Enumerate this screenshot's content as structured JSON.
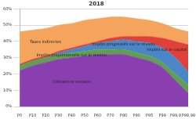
{
  "chart_data": {
    "type": "area",
    "title": "2018",
    "categories": [
      "P0",
      "P10",
      "P20",
      "P30",
      "P40",
      "P50",
      "P60",
      "P70",
      "P80",
      "P90",
      "P95",
      "P99",
      "P99,9",
      "P99,99"
    ],
    "stacked": true,
    "grid": true,
    "ylim": [
      0,
      60
    ],
    "yticks": [
      {
        "value": 0,
        "label": "0%"
      },
      {
        "value": 10,
        "label": "10%"
      },
      {
        "value": 20,
        "label": "20%"
      },
      {
        "value": 30,
        "label": "30%"
      },
      {
        "value": 40,
        "label": "40%"
      },
      {
        "value": 50,
        "label": "50%"
      },
      {
        "value": 60,
        "label": "60%"
      }
    ],
    "series": [
      {
        "name": "Cotisations sociales",
        "color": "#8a3fb0",
        "values": [
          22,
          25,
          27,
          29,
          30,
          31,
          32,
          32,
          32,
          30,
          28,
          24,
          16,
          8
        ]
      },
      {
        "name": "Impôts proportionnels sur le revenu",
        "color": "#5fa04e",
        "values": [
          3,
          3,
          3,
          3,
          3,
          3,
          3,
          3,
          3,
          3,
          3,
          3,
          4,
          5
        ]
      },
      {
        "name": "Impôts progressifs sur le revenu",
        "color": "#4a86c8",
        "values": [
          0,
          0,
          0,
          1,
          2,
          3,
          4,
          5,
          6,
          7,
          8,
          9,
          10,
          8
        ]
      },
      {
        "name": "Impôts sur le capital",
        "color": "#e0403a",
        "values": [
          1,
          1,
          1,
          1,
          1,
          1,
          1,
          2,
          2,
          3,
          4,
          6,
          10,
          17
        ]
      },
      {
        "name": "Taxes indirectes",
        "color": "#f4a45c",
        "values": [
          20,
          18,
          17,
          16,
          15,
          15,
          14,
          13,
          12,
          11,
          10,
          9,
          8,
          8
        ]
      }
    ]
  }
}
